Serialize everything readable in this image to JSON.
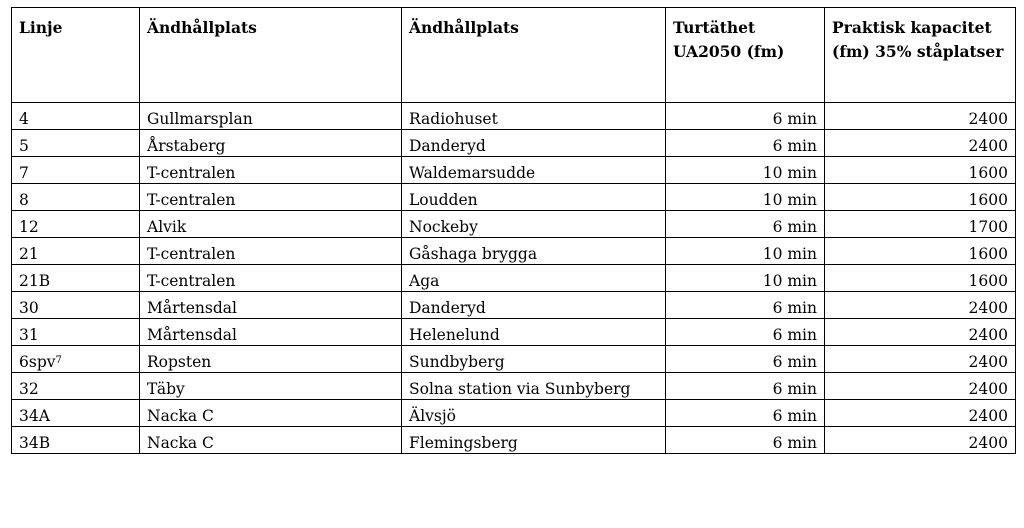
{
  "table": {
    "headers": [
      "Linje",
      "Ändhållplats",
      "Ändhållplats",
      "Turtäthet UA2050 (fm)",
      "Praktisk kapacitet (fm) 35% ståplatser"
    ],
    "rows": [
      {
        "linje": "4",
        "linje_sup": "",
        "from": "Gullmarsplan",
        "to": "Radiohuset",
        "freq": "6 min",
        "cap": "2400"
      },
      {
        "linje": "5",
        "linje_sup": "",
        "from": "Årstaberg",
        "to": "Danderyd",
        "freq": "6 min",
        "cap": "2400"
      },
      {
        "linje": "7",
        "linje_sup": "",
        "from": "T-centralen",
        "to": "Waldemarsudde",
        "freq": "10 min",
        "cap": "1600"
      },
      {
        "linje": "8",
        "linje_sup": "",
        "from": "T-centralen",
        "to": "Loudden",
        "freq": "10 min",
        "cap": "1600"
      },
      {
        "linje": "12",
        "linje_sup": "",
        "from": "Alvik",
        "to": "Nockeby",
        "freq": "6 min",
        "cap": "1700"
      },
      {
        "linje": "21",
        "linje_sup": "",
        "from": "T-centralen",
        "to": "Gåshaga brygga",
        "freq": "10 min",
        "cap": "1600"
      },
      {
        "linje": "21B",
        "linje_sup": "",
        "from": "T-centralen",
        "to": "Aga",
        "freq": "10 min",
        "cap": "1600"
      },
      {
        "linje": "30",
        "linje_sup": "",
        "from": "Mårtensdal",
        "to": "Danderyd",
        "freq": "6 min",
        "cap": "2400"
      },
      {
        "linje": "31",
        "linje_sup": "",
        "from": "Mårtensdal",
        "to": "Helenelund",
        "freq": "6 min",
        "cap": "2400"
      },
      {
        "linje": "6spv",
        "linje_sup": "7",
        "from": "Ropsten",
        "to": "Sundbyberg",
        "freq": "6 min",
        "cap": "2400"
      },
      {
        "linje": "32",
        "linje_sup": "",
        "from": "Täby",
        "to": "Solna station via Sunbyberg",
        "freq": "6 min",
        "cap": "2400"
      },
      {
        "linje": "34A",
        "linje_sup": "",
        "from": "Nacka C",
        "to": "Älvsjö",
        "freq": "6 min",
        "cap": "2400"
      },
      {
        "linje": "34B",
        "linje_sup": "",
        "from": "Nacka C",
        "to": "Flemingsberg",
        "freq": "6 min",
        "cap": "2400"
      }
    ]
  }
}
